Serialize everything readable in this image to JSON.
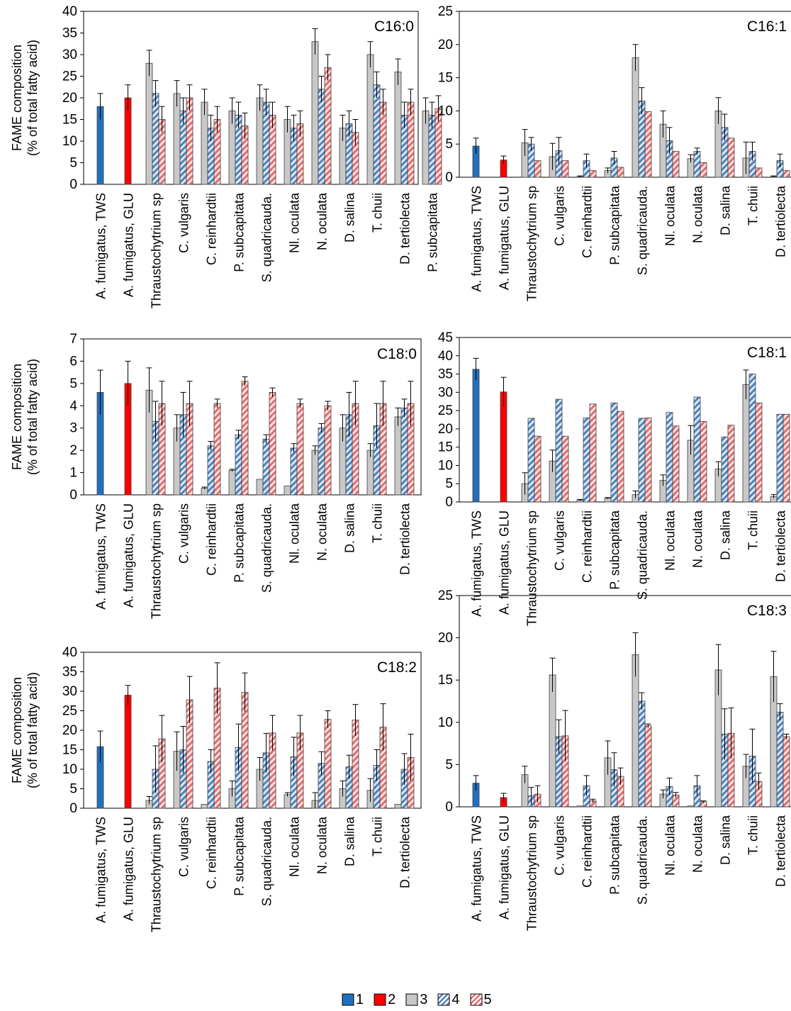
{
  "legend": [
    {
      "id": "1",
      "label": "1",
      "fill": "#2070C0",
      "pattern": "solid"
    },
    {
      "id": "2",
      "label": "2",
      "fill": "#FF0000",
      "pattern": "solid"
    },
    {
      "id": "3",
      "label": "3",
      "fill": "#C8C8C8",
      "pattern": "solid"
    },
    {
      "id": "4",
      "label": "4",
      "fill": "#4F81BD",
      "pattern": "hatch"
    },
    {
      "id": "5",
      "label": "5",
      "fill": "#E36C6C",
      "pattern": "hatch"
    }
  ],
  "chart_data": [
    {
      "type": "bar",
      "title": "C16:0",
      "ylabel": [
        "FAME composition",
        "(% of total fatty acid)"
      ],
      "ylim": [
        0,
        40
      ],
      "yticks": [
        0,
        5,
        10,
        15,
        20,
        25,
        30,
        35,
        40
      ],
      "categories": [
        "A. fumigatus, TWS",
        "A. fumigatus, GLU",
        "Thraustochytrium sp",
        "C. vulgaris",
        "C. reinhardtii",
        "P. subcapitata",
        "S. quadricauda.",
        "Nl. oculata",
        "N. oculata",
        "D. salina",
        "T. chuii",
        "D. tertiolecta",
        "P. subcapitata"
      ],
      "series": [
        {
          "name": "1",
          "values": [
            18,
            null,
            null,
            null,
            null,
            null,
            null,
            null,
            null,
            null,
            null,
            null,
            null
          ],
          "errors": [
            3,
            null,
            null,
            null,
            null,
            null,
            null,
            null,
            null,
            null,
            null,
            null,
            null
          ]
        },
        {
          "name": "2",
          "values": [
            null,
            20,
            null,
            null,
            null,
            null,
            null,
            null,
            null,
            null,
            null,
            null,
            null
          ],
          "errors": [
            null,
            3,
            null,
            null,
            null,
            null,
            null,
            null,
            null,
            null,
            null,
            null,
            null
          ]
        },
        {
          "name": "3",
          "values": [
            null,
            null,
            28,
            21,
            19,
            17,
            20,
            15,
            33,
            13,
            30,
            26,
            17
          ],
          "errors": [
            null,
            null,
            3,
            3,
            3,
            3,
            3,
            3,
            3,
            3,
            3,
            3,
            3
          ]
        },
        {
          "name": "4",
          "values": [
            null,
            null,
            21,
            17,
            13,
            16,
            19,
            13,
            22,
            14,
            23,
            16,
            16
          ],
          "errors": [
            null,
            null,
            3,
            3,
            3,
            3,
            3,
            3,
            3,
            3,
            3,
            3,
            3
          ]
        },
        {
          "name": "5",
          "values": [
            null,
            null,
            15,
            20,
            15,
            13.5,
            16,
            14,
            27,
            12,
            19,
            19,
            17.5
          ],
          "errors": [
            null,
            null,
            3,
            3,
            3,
            3,
            3,
            3,
            3,
            3,
            3,
            3,
            3
          ]
        }
      ]
    },
    {
      "type": "bar",
      "title": "C16:1",
      "ylabel": [],
      "ylim": [
        0,
        25
      ],
      "yticks": [
        0,
        5,
        10,
        15,
        20,
        25
      ],
      "categories": [
        "A. fumigatus, TWS",
        "A. fumigatus, GLU",
        "Thraustochytrium sp",
        "C. vulgaris",
        "C. reinhardtii",
        "P. subcapitata",
        "S. quadricauda.",
        "Nl. oculata",
        "N. oculata",
        "D. salina",
        "T. chuii",
        "D. tertiolecta"
      ],
      "series": [
        {
          "name": "1",
          "values": [
            4.7,
            null,
            null,
            null,
            null,
            null,
            null,
            null,
            null,
            null,
            null,
            null
          ],
          "errors": [
            1.2,
            null,
            null,
            null,
            null,
            null,
            null,
            null,
            null,
            null,
            null,
            null
          ]
        },
        {
          "name": "2",
          "values": [
            null,
            2.6,
            null,
            null,
            null,
            null,
            null,
            null,
            null,
            null,
            null,
            null
          ],
          "errors": [
            null,
            0.6,
            null,
            null,
            null,
            null,
            null,
            null,
            null,
            null,
            null,
            null
          ]
        },
        {
          "name": "3",
          "values": [
            null,
            null,
            5.2,
            3.1,
            0.1,
            1,
            18,
            8,
            2.8,
            10,
            2.9,
            0.1
          ],
          "errors": [
            null,
            null,
            2,
            2,
            0.1,
            0.4,
            2,
            2,
            0.6,
            2,
            2.4,
            0.1
          ]
        },
        {
          "name": "4",
          "values": [
            null,
            null,
            5,
            4,
            2.5,
            2.9,
            11.5,
            5.5,
            3.9,
            7.5,
            3.9,
            2.5
          ],
          "errors": [
            null,
            null,
            1,
            2,
            1,
            1,
            2,
            2,
            0.5,
            2,
            1.4,
            1
          ]
        },
        {
          "name": "5",
          "values": [
            null,
            null,
            2.5,
            2.5,
            1,
            1.5,
            9.9,
            3.9,
            2.2,
            5.9,
            1.4,
            1
          ]
        }
      ]
    },
    {
      "type": "bar",
      "title": "C18:0",
      "ylabel": [
        "FAME composition",
        "(% of total fatty acid)"
      ],
      "ylim": [
        0,
        7
      ],
      "yticks": [
        0,
        1,
        2,
        3,
        4,
        5,
        6,
        7
      ],
      "categories": [
        "A. fumigatus, TWS",
        "A. fumigatus, GLU",
        "Thraustochytrium sp",
        "C. vulgaris",
        "C. reinhardtii",
        "P. subcapitata",
        "S. quadricauda.",
        "Nl. oculata",
        "N. oculata",
        "D. salina",
        "T. chuii",
        "D. tertiolecta"
      ],
      "series": [
        {
          "name": "1",
          "values": [
            4.6,
            null,
            null,
            null,
            null,
            null,
            null,
            null,
            null,
            null,
            null,
            null
          ],
          "errors": [
            1,
            null,
            null,
            null,
            null,
            null,
            null,
            null,
            null,
            null,
            null,
            null
          ]
        },
        {
          "name": "2",
          "values": [
            null,
            5,
            null,
            null,
            null,
            null,
            null,
            null,
            null,
            null,
            null,
            null
          ],
          "errors": [
            null,
            1,
            null,
            null,
            null,
            null,
            null,
            null,
            null,
            null,
            null,
            null
          ]
        },
        {
          "name": "3",
          "values": [
            null,
            null,
            4.7,
            3,
            0.3,
            1.1,
            0.7,
            0.4,
            2,
            3,
            2,
            3.5
          ],
          "errors": [
            null,
            null,
            1,
            0.6,
            0.05,
            0.05,
            0,
            0,
            0.2,
            0.6,
            0.3,
            0.4
          ]
        },
        {
          "name": "4",
          "values": [
            null,
            null,
            3.3,
            3.6,
            2.2,
            2.7,
            2.5,
            2.1,
            3,
            3.6,
            3.1,
            3.9
          ],
          "errors": [
            null,
            null,
            0.9,
            1,
            0.2,
            0.2,
            0.2,
            0.2,
            0.2,
            1,
            1,
            0.4
          ]
        },
        {
          "name": "5",
          "values": [
            null,
            null,
            4.1,
            4.1,
            4.1,
            5.1,
            4.6,
            4.1,
            4,
            4.1,
            4.1,
            4.1
          ],
          "errors": [
            null,
            null,
            1,
            1,
            0.2,
            0.2,
            0.2,
            0.2,
            0.2,
            1,
            1,
            1
          ]
        }
      ]
    },
    {
      "type": "bar",
      "title": "C18:1",
      "ylabel": [],
      "ylim": [
        0,
        45
      ],
      "yticks": [
        0,
        5,
        10,
        15,
        20,
        25,
        30,
        35,
        40,
        45
      ],
      "categories": [
        "A. fumigatus, TWS",
        "A. fumigatus, GLU",
        "Thraustochytrium sp",
        "C. vulgaris",
        "C. reinhardtii",
        "P. subcapitata",
        "S. quadricauda.",
        "Nl. oculata",
        "N. oculata",
        "D. salina",
        "T. chuii",
        "D. tertiolecta"
      ],
      "series": [
        {
          "name": "1",
          "values": [
            36.3,
            null,
            null,
            null,
            null,
            null,
            null,
            null,
            null,
            null,
            null,
            null
          ],
          "errors": [
            3,
            null,
            null,
            null,
            null,
            null,
            null,
            null,
            null,
            null,
            null,
            null
          ]
        },
        {
          "name": "2",
          "values": [
            null,
            30.1,
            null,
            null,
            null,
            null,
            null,
            null,
            null,
            null,
            null,
            null
          ],
          "errors": [
            null,
            4,
            null,
            null,
            null,
            null,
            null,
            null,
            null,
            null,
            null,
            null
          ]
        },
        {
          "name": "3",
          "values": [
            null,
            null,
            5,
            11.2,
            0.5,
            1,
            2,
            5.9,
            16.9,
            9,
            32.1,
            1.5
          ],
          "errors": [
            null,
            null,
            3,
            3,
            0.2,
            0.2,
            1,
            1.5,
            4,
            2,
            4,
            0.5
          ]
        },
        {
          "name": "4",
          "values": [
            null,
            null,
            22.9,
            28.1,
            23,
            27.1,
            22.9,
            24.5,
            28.7,
            17.8,
            35,
            24
          ]
        },
        {
          "name": "5",
          "values": [
            null,
            null,
            18,
            18,
            26.8,
            24.8,
            23,
            20.8,
            22,
            21,
            27.1,
            24
          ]
        }
      ]
    },
    {
      "type": "bar",
      "title": "C18:2",
      "ylabel": [
        "FAME composition",
        "(% of total fatty acid)"
      ],
      "ylim": [
        0,
        40
      ],
      "yticks": [
        0,
        5,
        10,
        15,
        20,
        25,
        30,
        35,
        40
      ],
      "categories": [
        "A. fumigatus, TWS",
        "A. fumigatus, GLU",
        "Thraustochytrium sp",
        "C. vulgaris",
        "C. reinhardtii",
        "P. subcapitata",
        "S. quadricauda.",
        "Nl. oculata",
        "N. oculata",
        "D. salina",
        "T. chuii",
        "D. tertiolecta"
      ],
      "series": [
        {
          "name": "1",
          "values": [
            15.8,
            null,
            null,
            null,
            null,
            null,
            null,
            null,
            null,
            null,
            null,
            null
          ],
          "errors": [
            4,
            null,
            null,
            null,
            null,
            null,
            null,
            null,
            null,
            null,
            null,
            null
          ]
        },
        {
          "name": "2",
          "values": [
            null,
            29,
            null,
            null,
            null,
            null,
            null,
            null,
            null,
            null,
            null,
            null
          ],
          "errors": [
            null,
            2.5,
            null,
            null,
            null,
            null,
            null,
            null,
            null,
            null,
            null,
            null
          ]
        },
        {
          "name": "3",
          "values": [
            null,
            null,
            2,
            14.6,
            1,
            5,
            10,
            3.5,
            2,
            5,
            4.6,
            1
          ],
          "errors": [
            null,
            null,
            1,
            5,
            0,
            2,
            3,
            0.5,
            2,
            2,
            3,
            0
          ]
        },
        {
          "name": "4",
          "values": [
            null,
            null,
            10,
            15,
            12,
            15.6,
            14.2,
            13.2,
            11.5,
            10.6,
            11,
            10
          ],
          "errors": [
            null,
            null,
            6,
            6,
            3,
            6,
            5,
            5,
            3,
            3,
            4,
            4
          ]
        },
        {
          "name": "5",
          "values": [
            null,
            null,
            17.8,
            27.8,
            30.8,
            29.7,
            19.3,
            19.3,
            22.8,
            22.6,
            20.8,
            13
          ],
          "errors": [
            null,
            null,
            6,
            6,
            6.5,
            5,
            4.5,
            4.5,
            2.2,
            4,
            6,
            6
          ]
        }
      ]
    },
    {
      "type": "bar",
      "title": "C18:3",
      "ylabel": [],
      "ylim": [
        0,
        25
      ],
      "yticks": [
        0,
        5,
        10,
        15,
        20,
        25
      ],
      "categories": [
        "A. fumigatus, TWS",
        "A. fumigatus, GLU",
        "Thraustochytrium sp",
        "C. vulgaris",
        "C. reinhardtii",
        "P. subcapitata",
        "S. quadricauda.",
        "Nl. oculata",
        "N. oculata",
        "D. salina",
        "T. chuii",
        "D. tertiolecta"
      ],
      "series": [
        {
          "name": "1",
          "values": [
            2.8,
            null,
            null,
            null,
            null,
            null,
            null,
            null,
            null,
            null,
            null,
            null
          ],
          "errors": [
            0.9,
            null,
            null,
            null,
            null,
            null,
            null,
            null,
            null,
            null,
            null,
            null
          ]
        },
        {
          "name": "2",
          "values": [
            null,
            1.1,
            null,
            null,
            null,
            null,
            null,
            null,
            null,
            null,
            null,
            null
          ],
          "errors": [
            null,
            0.5,
            null,
            null,
            null,
            null,
            null,
            null,
            null,
            null,
            null,
            null
          ]
        },
        {
          "name": "3",
          "values": [
            null,
            null,
            3.8,
            15.6,
            0.1,
            5.8,
            18,
            1.5,
            0.1,
            16.2,
            4.8,
            15.4
          ],
          "errors": [
            null,
            null,
            1,
            2,
            0,
            2,
            2.6,
            0.5,
            0,
            3,
            1.4,
            3
          ]
        },
        {
          "name": "4",
          "values": [
            null,
            null,
            1.3,
            8.3,
            2.5,
            4.4,
            12.5,
            2.4,
            2.5,
            8.6,
            6,
            11.2
          ],
          "errors": [
            null,
            null,
            1,
            2,
            1.2,
            2,
            1,
            1,
            1.2,
            3,
            3.2,
            1
          ]
        },
        {
          "name": "5",
          "values": [
            null,
            null,
            1.5,
            8.4,
            0.7,
            3.6,
            9.6,
            1.4,
            0.6,
            8.7,
            3,
            8.3
          ],
          "errors": [
            null,
            null,
            1,
            3,
            0.2,
            1,
            0.2,
            0.3,
            0.1,
            3,
            1,
            0.3
          ]
        }
      ]
    }
  ]
}
